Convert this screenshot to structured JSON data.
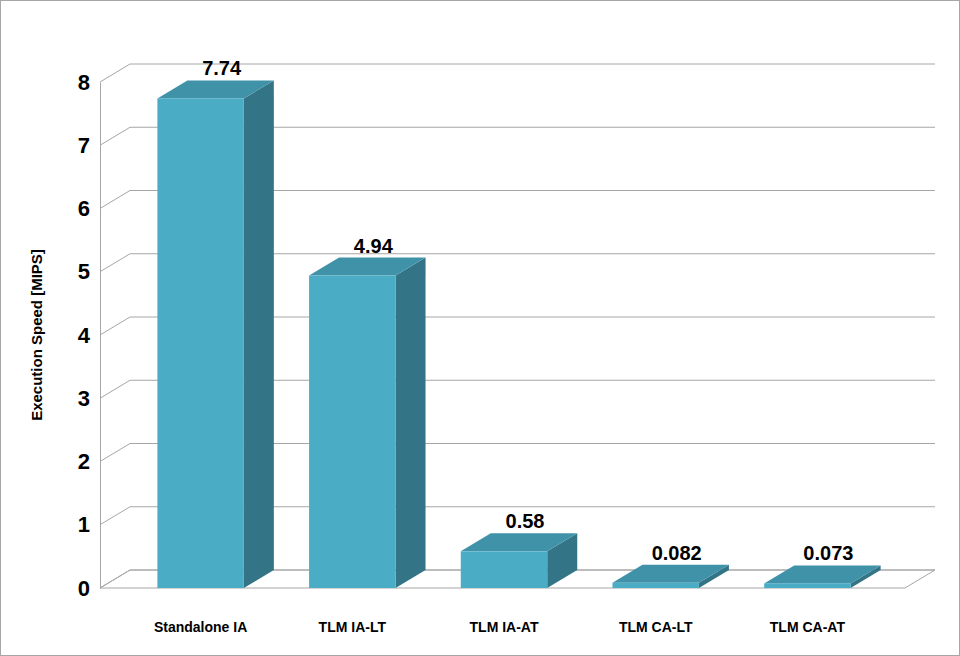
{
  "chart_data": {
    "type": "bar",
    "y_label": "Execution Speed [MIPS]",
    "categories": [
      "Standalone IA",
      "TLM IA-LT",
      "TLM IA-AT",
      "TLM CA-LT",
      "TLM CA-AT"
    ],
    "values": [
      7.74,
      4.94,
      0.58,
      0.082,
      0.073
    ],
    "color": "#4bacc6",
    "ylim": [
      0,
      8
    ],
    "yticks": [
      0,
      1,
      2,
      3,
      4,
      5,
      6,
      7,
      8
    ],
    "grid": true,
    "data_labels": true
  }
}
